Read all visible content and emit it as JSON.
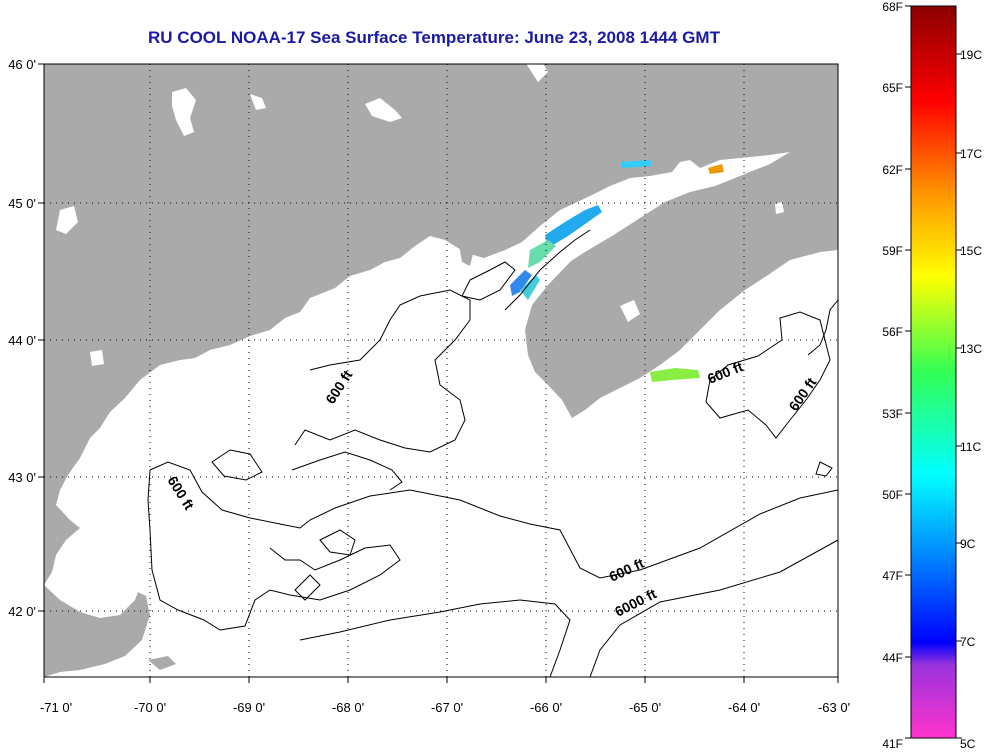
{
  "title": "RU COOL  NOAA-17  Sea Surface Temperature:  June 23, 2008 1444 GMT",
  "axes": {
    "lon_labels": [
      "-71 0'",
      "-70 0'",
      "-69 0'",
      "-68 0'",
      "-67 0'",
      "-66 0'",
      "-65 0'",
      "-64 0'",
      "-63 0'"
    ],
    "lat_labels": [
      "46 0'",
      "45 0'",
      "44 0'",
      "43 0'",
      "42 0'"
    ]
  },
  "contour_labels": {
    "c1": "600 ft",
    "c2": "600 ft",
    "c3": "600 ft",
    "c4": "600 ft",
    "c5": "600 ft",
    "c6": "6000 ft"
  },
  "colorbar": {
    "f_labels": [
      "68F",
      "65F",
      "62F",
      "59F",
      "56F",
      "53F",
      "50F",
      "47F",
      "44F",
      "41F"
    ],
    "c_labels": [
      "19C",
      "17C",
      "15C",
      "13C",
      "11C",
      "9C",
      "7C",
      "5C"
    ]
  },
  "colors": {
    "land": "#aaaaaa",
    "ocean": "#ffffff",
    "title": "#1a1aa6",
    "contour": "#000000"
  }
}
